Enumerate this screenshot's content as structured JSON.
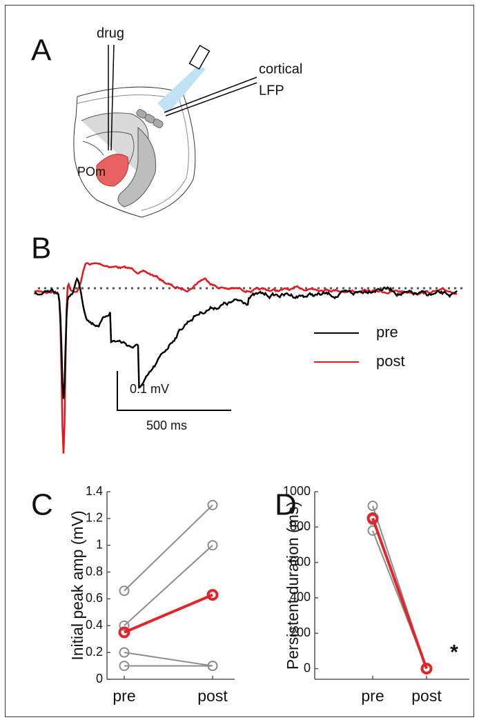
{
  "panel_labels": [
    "A",
    "B"
  ],
  "diagram": {
    "drug": "drug",
    "electrode_top": "cortical",
    "electrode_bottom": "LFP",
    "region": "POm"
  },
  "traces": {
    "legend": [
      "pre",
      "post"
    ],
    "colors": [
      "#000000",
      "#e8141a"
    ],
    "scale_v": "0.1 mV",
    "scale_t": "500 ms"
  },
  "chart_data": [
    {
      "type": "line",
      "panel_label": "C",
      "y_label": "Initial peak amp (mV)",
      "categories": [
        "pre",
        "post"
      ],
      "ylim": [
        0,
        1.4
      ],
      "yticks": [
        0,
        0.2,
        0.4,
        0.6,
        0.8,
        1,
        1.2,
        1.4
      ],
      "series": [
        {
          "color": "#8c8c8c",
          "values": [
            0.66,
            1.3
          ]
        },
        {
          "color": "#8c8c8c",
          "values": [
            0.4,
            1.0
          ]
        },
        {
          "color": "#8c8c8c",
          "values": [
            0.2,
            0.1
          ]
        },
        {
          "color": "#8c8c8c",
          "values": [
            0.1,
            0.1
          ]
        },
        {
          "color": "#e0262b",
          "values": [
            0.35,
            0.63
          ]
        }
      ]
    },
    {
      "type": "line",
      "panel_label": "D",
      "y_label": "Persistent duration (ms)",
      "categories": [
        "pre",
        "post"
      ],
      "ylim": [
        -60,
        1000
      ],
      "yticks": [
        0,
        200,
        400,
        600,
        800,
        1000
      ],
      "annotation": "*",
      "series": [
        {
          "color": "#8c8c8c",
          "values": [
            920,
            0
          ]
        },
        {
          "color": "#8c8c8c",
          "values": [
            780,
            0
          ]
        },
        {
          "color": "#8c8c8c",
          "values": [
            840,
            0
          ]
        },
        {
          "color": "#e0262b",
          "values": [
            850,
            0
          ]
        }
      ]
    }
  ]
}
